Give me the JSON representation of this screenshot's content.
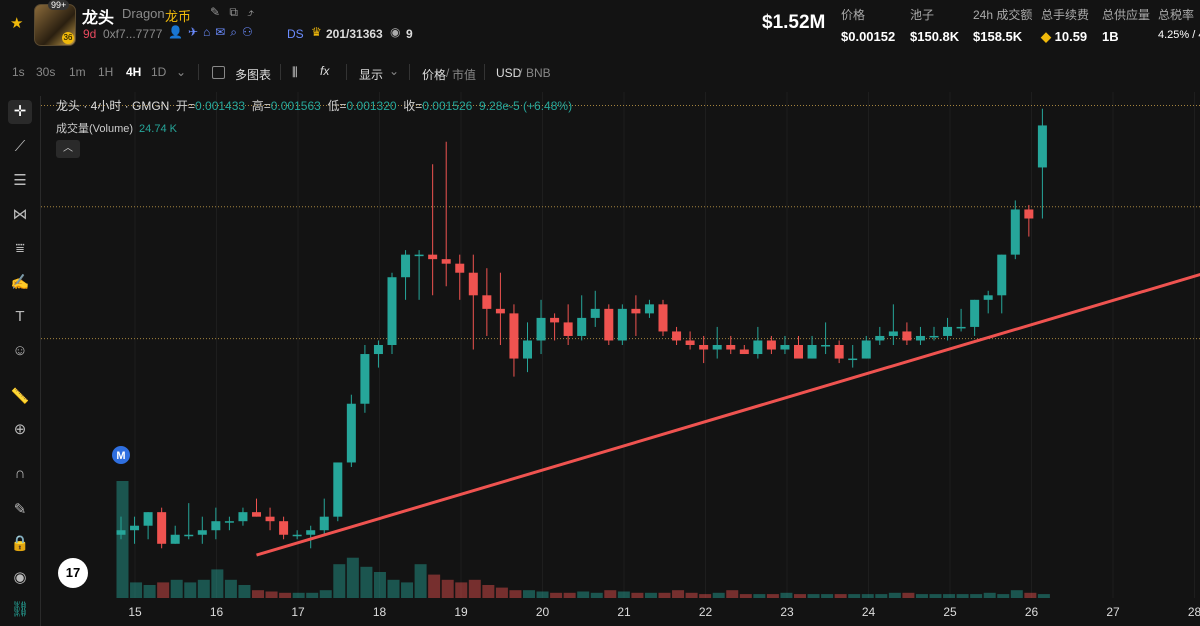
{
  "token": {
    "badge": "99+",
    "badge2": "36",
    "name": "龙头",
    "en": "Dragon",
    "cn": "龙币",
    "age": "9d",
    "address": "0xf7...7777",
    "ds": "DS",
    "holders": "201/31363",
    "views": "9"
  },
  "stats": {
    "mcap": "$1.52M",
    "items": [
      {
        "label": "价格",
        "value": "$0.00152"
      },
      {
        "label": "池子",
        "value": "$150.8K"
      },
      {
        "label": "24h 成交额",
        "value": "$158.5K"
      },
      {
        "label": "总手续费",
        "value": "10.59"
      },
      {
        "label": "总供应量",
        "value": "1B"
      },
      {
        "label": "总税率",
        "value": "4.25% / 4"
      }
    ]
  },
  "toolbar": {
    "timeframes": [
      "1s",
      "30s",
      "1m",
      "1H",
      "4H",
      "1D"
    ],
    "active": "4H",
    "multi_chart": "多图表",
    "fx": "fx",
    "display": "显示",
    "price": "价格",
    "mcap": "市值",
    "usd": "USD",
    "bnb": "BNB"
  },
  "legend": {
    "title": "龙头 · 4小时 · GMGN",
    "open_label": "开=",
    "open": "0.001433",
    "high_label": "高=",
    "high": "0.001563",
    "low_label": "低=",
    "low": "0.001320",
    "close_label": "收=",
    "close": "0.001526",
    "change": "9.28e-5 (+6.48%)",
    "volume_label": "成交量(Volume)",
    "volume": "24.74 K",
    "tv_logo": "17",
    "marker": "M"
  },
  "chart_data": {
    "type": "candlestick",
    "x_labels": [
      "15",
      "16",
      "17",
      "18",
      "19",
      "20",
      "21",
      "22",
      "23",
      "24",
      "25",
      "26",
      "27",
      "28"
    ],
    "candles": [
      {
        "o": 0.00062,
        "h": 0.00066,
        "l": 0.00061,
        "c": 0.00063
      },
      {
        "o": 0.00063,
        "h": 0.00066,
        "l": 0.0006,
        "c": 0.00064
      },
      {
        "o": 0.00064,
        "h": 0.00067,
        "l": 0.00061,
        "c": 0.00067
      },
      {
        "o": 0.00067,
        "h": 0.00068,
        "l": 0.00059,
        "c": 0.0006
      },
      {
        "o": 0.0006,
        "h": 0.00064,
        "l": 0.0006,
        "c": 0.00062
      },
      {
        "o": 0.00062,
        "h": 0.00069,
        "l": 0.00061,
        "c": 0.00062
      },
      {
        "o": 0.00062,
        "h": 0.00066,
        "l": 0.0006,
        "c": 0.00063
      },
      {
        "o": 0.00063,
        "h": 0.00068,
        "l": 0.00061,
        "c": 0.00065
      },
      {
        "o": 0.00065,
        "h": 0.00066,
        "l": 0.00063,
        "c": 0.00065
      },
      {
        "o": 0.00065,
        "h": 0.00068,
        "l": 0.00064,
        "c": 0.00067
      },
      {
        "o": 0.00067,
        "h": 0.0007,
        "l": 0.00066,
        "c": 0.00066
      },
      {
        "o": 0.00066,
        "h": 0.00068,
        "l": 0.00063,
        "c": 0.00065
      },
      {
        "o": 0.00065,
        "h": 0.00066,
        "l": 0.00061,
        "c": 0.00062
      },
      {
        "o": 0.00062,
        "h": 0.00063,
        "l": 0.00061,
        "c": 0.00062
      },
      {
        "o": 0.00062,
        "h": 0.00064,
        "l": 0.00059,
        "c": 0.00063
      },
      {
        "o": 0.00063,
        "h": 0.0007,
        "l": 0.00062,
        "c": 0.00066
      },
      {
        "o": 0.00066,
        "h": 0.00078,
        "l": 0.00065,
        "c": 0.00078
      },
      {
        "o": 0.00078,
        "h": 0.00093,
        "l": 0.00077,
        "c": 0.00091
      },
      {
        "o": 0.00091,
        "h": 0.00104,
        "l": 0.00089,
        "c": 0.00102
      },
      {
        "o": 0.00102,
        "h": 0.00105,
        "l": 0.00099,
        "c": 0.00104
      },
      {
        "o": 0.00104,
        "h": 0.0012,
        "l": 0.00102,
        "c": 0.00119
      },
      {
        "o": 0.00119,
        "h": 0.00125,
        "l": 0.00114,
        "c": 0.00124
      },
      {
        "o": 0.00124,
        "h": 0.00125,
        "l": 0.00114,
        "c": 0.00124
      },
      {
        "o": 0.00124,
        "h": 0.00144,
        "l": 0.00115,
        "c": 0.00123
      },
      {
        "o": 0.00123,
        "h": 0.00149,
        "l": 0.00117,
        "c": 0.00122
      },
      {
        "o": 0.00122,
        "h": 0.00124,
        "l": 0.00114,
        "c": 0.0012
      },
      {
        "o": 0.0012,
        "h": 0.00124,
        "l": 0.00103,
        "c": 0.00115
      },
      {
        "o": 0.00115,
        "h": 0.00121,
        "l": 0.00106,
        "c": 0.00112
      },
      {
        "o": 0.00112,
        "h": 0.0012,
        "l": 0.00104,
        "c": 0.00111
      },
      {
        "o": 0.00111,
        "h": 0.00113,
        "l": 0.00097,
        "c": 0.00101
      },
      {
        "o": 0.00101,
        "h": 0.00109,
        "l": 0.00098,
        "c": 0.00105
      },
      {
        "o": 0.00105,
        "h": 0.00114,
        "l": 0.00102,
        "c": 0.0011
      },
      {
        "o": 0.0011,
        "h": 0.00111,
        "l": 0.00105,
        "c": 0.00109
      },
      {
        "o": 0.00109,
        "h": 0.00113,
        "l": 0.00104,
        "c": 0.00106
      },
      {
        "o": 0.00106,
        "h": 0.00115,
        "l": 0.00105,
        "c": 0.0011
      },
      {
        "o": 0.0011,
        "h": 0.00116,
        "l": 0.00108,
        "c": 0.00112
      },
      {
        "o": 0.00112,
        "h": 0.00113,
        "l": 0.00104,
        "c": 0.00105
      },
      {
        "o": 0.00105,
        "h": 0.00113,
        "l": 0.00104,
        "c": 0.00112
      },
      {
        "o": 0.00112,
        "h": 0.00115,
        "l": 0.00106,
        "c": 0.00111
      },
      {
        "o": 0.00111,
        "h": 0.00114,
        "l": 0.0011,
        "c": 0.00113
      },
      {
        "o": 0.00113,
        "h": 0.00114,
        "l": 0.00106,
        "c": 0.00107
      },
      {
        "o": 0.00107,
        "h": 0.00108,
        "l": 0.00104,
        "c": 0.00105
      },
      {
        "o": 0.00105,
        "h": 0.00107,
        "l": 0.00103,
        "c": 0.00104
      },
      {
        "o": 0.00104,
        "h": 0.00106,
        "l": 0.001,
        "c": 0.00103
      },
      {
        "o": 0.00103,
        "h": 0.00108,
        "l": 0.00101,
        "c": 0.00104
      },
      {
        "o": 0.00104,
        "h": 0.00106,
        "l": 0.00102,
        "c": 0.00103
      },
      {
        "o": 0.00103,
        "h": 0.00104,
        "l": 0.00102,
        "c": 0.00102
      },
      {
        "o": 0.00102,
        "h": 0.00108,
        "l": 0.00101,
        "c": 0.00105
      },
      {
        "o": 0.00105,
        "h": 0.00106,
        "l": 0.00102,
        "c": 0.00103
      },
      {
        "o": 0.00103,
        "h": 0.00106,
        "l": 0.00102,
        "c": 0.00104
      },
      {
        "o": 0.00104,
        "h": 0.00106,
        "l": 0.00101,
        "c": 0.00101
      },
      {
        "o": 0.00101,
        "h": 0.00106,
        "l": 0.00101,
        "c": 0.00104
      },
      {
        "o": 0.00104,
        "h": 0.00109,
        "l": 0.00102,
        "c": 0.00104
      },
      {
        "o": 0.00104,
        "h": 0.00105,
        "l": 0.001,
        "c": 0.00101
      },
      {
        "o": 0.00101,
        "h": 0.00104,
        "l": 0.00099,
        "c": 0.00101
      },
      {
        "o": 0.00101,
        "h": 0.00106,
        "l": 0.00101,
        "c": 0.00105
      },
      {
        "o": 0.00105,
        "h": 0.00108,
        "l": 0.00104,
        "c": 0.00106
      },
      {
        "o": 0.00106,
        "h": 0.00113,
        "l": 0.00104,
        "c": 0.00107
      },
      {
        "o": 0.00107,
        "h": 0.00109,
        "l": 0.00104,
        "c": 0.00105
      },
      {
        "o": 0.00105,
        "h": 0.00108,
        "l": 0.00104,
        "c": 0.00106
      },
      {
        "o": 0.00106,
        "h": 0.00108,
        "l": 0.00105,
        "c": 0.00106
      },
      {
        "o": 0.00106,
        "h": 0.0011,
        "l": 0.00105,
        "c": 0.00108
      },
      {
        "o": 0.00108,
        "h": 0.00112,
        "l": 0.00107,
        "c": 0.00108
      },
      {
        "o": 0.00108,
        "h": 0.00114,
        "l": 0.00106,
        "c": 0.00114
      },
      {
        "o": 0.00114,
        "h": 0.00116,
        "l": 0.00111,
        "c": 0.00115
      },
      {
        "o": 0.00115,
        "h": 0.00124,
        "l": 0.00111,
        "c": 0.00124
      },
      {
        "o": 0.00124,
        "h": 0.00136,
        "l": 0.00123,
        "c": 0.00134
      },
      {
        "o": 0.00134,
        "h": 0.00135,
        "l": 0.00128,
        "c": 0.00132
      },
      {
        "o": 0.001433,
        "h": 0.001563,
        "l": 0.00132,
        "c": 0.001526
      }
    ],
    "volume": [
      0.9,
      0.12,
      0.1,
      0.12,
      0.14,
      0.12,
      0.14,
      0.22,
      0.14,
      0.1,
      0.06,
      0.05,
      0.04,
      0.04,
      0.04,
      0.06,
      0.26,
      0.31,
      0.24,
      0.2,
      0.14,
      0.12,
      0.26,
      0.18,
      0.14,
      0.12,
      0.14,
      0.1,
      0.08,
      0.06,
      0.06,
      0.05,
      0.04,
      0.04,
      0.05,
      0.04,
      0.06,
      0.05,
      0.04,
      0.04,
      0.04,
      0.06,
      0.04,
      0.03,
      0.04,
      0.06,
      0.03,
      0.03,
      0.03,
      0.04,
      0.03,
      0.03,
      0.03,
      0.03,
      0.03,
      0.03,
      0.03,
      0.04,
      0.04,
      0.03,
      0.03,
      0.03,
      0.03,
      0.03,
      0.04,
      0.03,
      0.06,
      0.04,
      0.03
    ],
    "ylim": [
      0.00048,
      0.0016
    ],
    "hlines": [
      0.00157,
      0.001346,
      0.001054
    ],
    "trendline": {
      "from_candle": 10,
      "from_price": 0.000575,
      "to_candle": 94,
      "to_price": 0.001324
    },
    "colors": {
      "up": "#26a69a",
      "down": "#ef5350",
      "trend": "#ef5350",
      "hline": "#c9a14a",
      "marker": "#2f6fe0"
    }
  }
}
